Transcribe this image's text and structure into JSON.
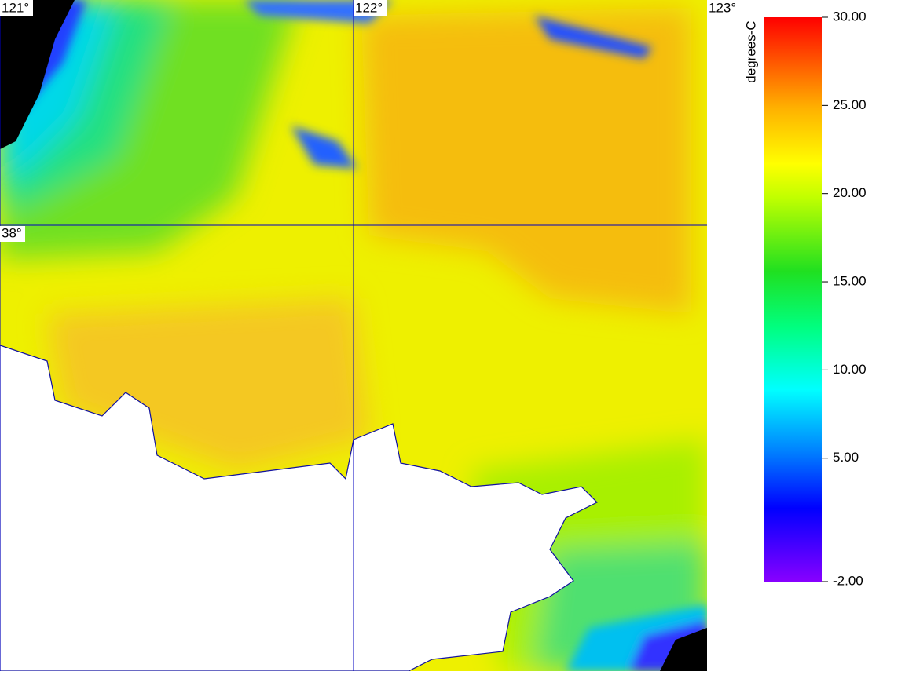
{
  "map": {
    "longitude_labels": [
      "121°",
      "122°",
      "123°"
    ],
    "latitude_labels": [
      "38°"
    ]
  },
  "colorbar": {
    "label": "degrees-C",
    "range": [
      -2,
      30
    ],
    "ticks": [
      {
        "value": 30,
        "label": "30.00"
      },
      {
        "value": 25,
        "label": "25.00"
      },
      {
        "value": 20,
        "label": "20.00"
      },
      {
        "value": 15,
        "label": "15.00"
      },
      {
        "value": 10,
        "label": "10.00"
      },
      {
        "value": 5,
        "label": "5.00"
      },
      {
        "value": -2,
        "label": "-2.00"
      }
    ]
  }
}
